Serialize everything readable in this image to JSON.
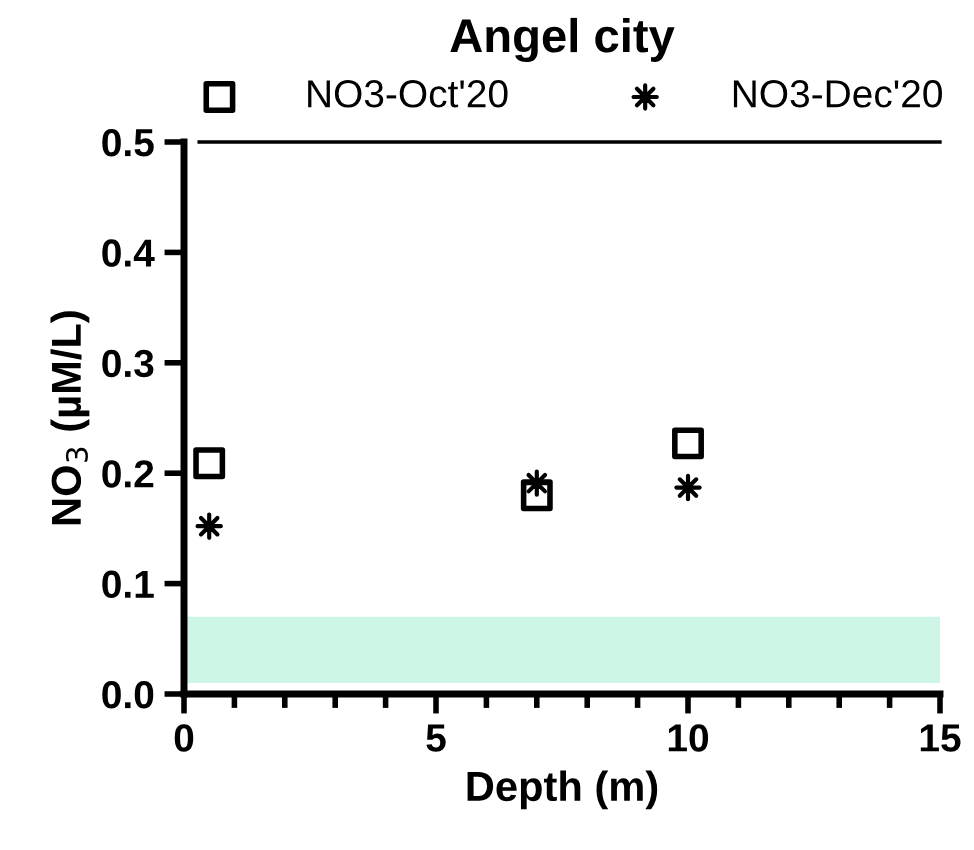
{
  "chart_data": {
    "type": "scatter",
    "title": "Angel city",
    "xlabel": "Depth (m)",
    "ylabel": "NO$_{3}$ (µM/L)",
    "series": [
      {
        "name": "NO3-Oct'20",
        "color": "#000000",
        "marker": "square",
        "x": [
          0.5,
          7,
          10
        ],
        "values": [
          0.209,
          0.18,
          0.227
        ]
      },
      {
        "name": "NO3-Dec'20",
        "color": "#000000",
        "marker": "star",
        "x": [
          0.5,
          7,
          10
        ],
        "values": [
          0.152,
          0.191,
          0.187
        ]
      }
    ],
    "xlim": [
      0,
      15
    ],
    "xticks": [
      0,
      5,
      10,
      15
    ],
    "ylim": [
      0,
      0.5
    ],
    "yticks": [
      {
        "value": 0,
        "label": "0.0"
      },
      0.1,
      0.2,
      0.3,
      0.4,
      0.5
    ],
    "bands": [
      {
        "axis": "y",
        "from": 0.01,
        "to": 0.07,
        "color": "#cdf6e6"
      }
    ],
    "ref_lines": [
      {
        "axis": "y",
        "value": 0.5,
        "color": "#000000"
      }
    ],
    "grid": false,
    "legend": "top"
  }
}
